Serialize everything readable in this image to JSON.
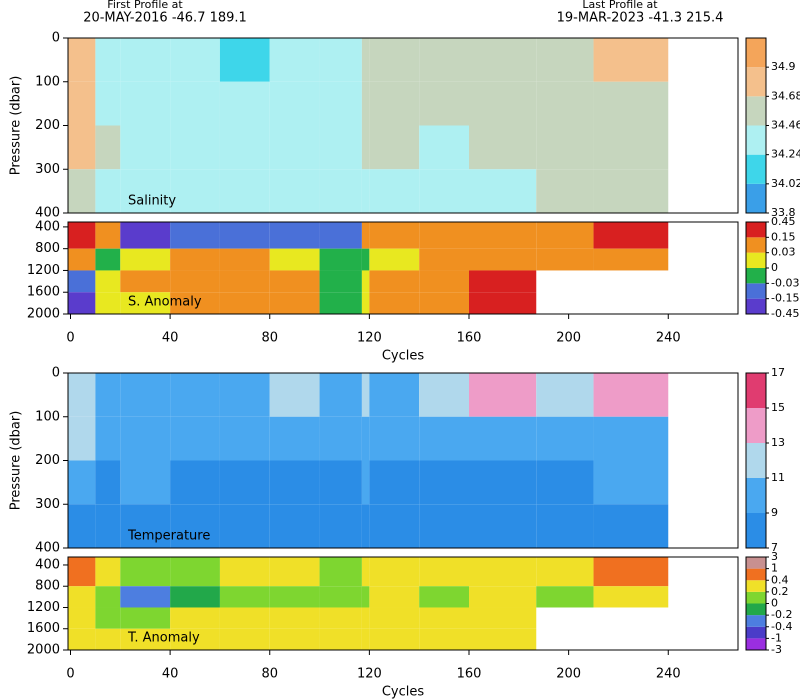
{
  "header": {
    "first_label": "First Profile at",
    "first_info": "20-MAY-2016   -46.7  189.1",
    "last_label": "Last Profile at",
    "last_info": "19-MAR-2023   -41.3  215.4"
  },
  "chart_data": [
    {
      "type": "heatmap",
      "label": "Salinity",
      "ylabel": "Pressure (dbar)",
      "xlim": [
        -1,
        268
      ],
      "ylim": [
        0,
        400
      ],
      "yticks": [
        0,
        100,
        200,
        300,
        400
      ],
      "x_edges": [
        -1,
        10,
        20,
        40,
        60,
        80,
        100,
        117,
        120,
        140,
        160,
        187,
        210,
        240,
        268
      ],
      "y_edges": [
        0,
        100,
        200,
        300,
        400
      ],
      "z": [
        [
          34.8,
          34.4,
          34.3,
          34.35,
          34.2,
          34.3,
          34.3,
          34.6,
          34.55,
          34.5,
          34.5,
          34.55,
          34.8
        ],
        [
          34.75,
          34.35,
          34.4,
          34.3,
          34.3,
          34.3,
          34.35,
          34.55,
          34.55,
          34.5,
          34.5,
          34.5,
          34.5
        ],
        [
          34.7,
          34.5,
          34.35,
          34.35,
          34.35,
          34.35,
          34.35,
          34.5,
          34.5,
          34.45,
          34.5,
          34.5,
          34.5
        ],
        [
          34.6,
          34.4,
          34.35,
          34.35,
          34.35,
          34.35,
          34.4,
          34.35,
          34.4,
          34.4,
          34.45,
          34.5,
          34.5
        ]
      ],
      "colorbar": {
        "ticks": [
          33.8,
          34.02,
          34.24,
          34.46,
          34.68,
          34.9
        ],
        "colors": [
          "#3a9fe8",
          "#3ed6ea",
          "#aef0f2",
          "#c6d6be",
          "#f4c08c",
          "#f4a55a"
        ]
      }
    },
    {
      "type": "heatmap",
      "label": "S. Anomaly",
      "xlabel": "Cycles",
      "xlim": [
        -1,
        268
      ],
      "xticks": [
        0,
        40,
        80,
        120,
        160,
        200,
        240
      ],
      "ylim": [
        310,
        2000
      ],
      "yticks": [
        400,
        800,
        1200,
        1600,
        2000
      ],
      "x_edges": [
        -1,
        10,
        20,
        40,
        60,
        80,
        100,
        117,
        120,
        140,
        160,
        187,
        210,
        240,
        268
      ],
      "y_edges": [
        310,
        800,
        1200,
        1600,
        2000
      ],
      "z": [
        [
          0.2,
          0.1,
          -0.2,
          -0.1,
          -0.1,
          -0.1,
          -0.05,
          0.1,
          0.1,
          0.1,
          0.1,
          0.1,
          0.2
        ],
        [
          0.1,
          -0.02,
          0.01,
          0.05,
          0.1,
          0.02,
          -0.02,
          -0.02,
          0.01,
          0.05,
          0.1,
          0.05,
          0.1
        ],
        [
          -0.1,
          0.01,
          0.05,
          0.1,
          0.12,
          0.05,
          -0.02,
          0.01,
          0.05,
          0.1,
          0.2,
          null,
          null
        ],
        [
          -0.2,
          0.01,
          0.02,
          0.05,
          0.1,
          0.05,
          -0.02,
          0.01,
          0.05,
          0.1,
          0.2,
          null,
          null
        ]
      ],
      "colorbar": {
        "ticks": [
          -0.45,
          -0.15,
          -0.03,
          0,
          0.03,
          0.15,
          0.45
        ],
        "colors": [
          "#5a3ccc",
          "#4a70d8",
          "#22b04a",
          "#e8e820",
          "#f09020",
          "#d82020"
        ]
      }
    },
    {
      "type": "heatmap",
      "label": "Temperature",
      "ylabel": "Pressure (dbar)",
      "xlim": [
        -1,
        268
      ],
      "ylim": [
        0,
        400
      ],
      "yticks": [
        0,
        100,
        200,
        300,
        400
      ],
      "x_edges": [
        -1,
        10,
        20,
        40,
        60,
        80,
        100,
        117,
        120,
        140,
        160,
        187,
        210,
        240,
        268
      ],
      "y_edges": [
        0,
        100,
        200,
        300,
        400
      ],
      "z": [
        [
          12,
          9.5,
          10,
          9.5,
          10,
          11,
          10,
          12,
          10,
          11,
          13,
          12,
          14
        ],
        [
          11,
          9,
          9,
          9,
          9,
          9.5,
          9,
          10,
          9.5,
          9.5,
          9.5,
          9.5,
          10
        ],
        [
          9.5,
          8.5,
          9,
          8,
          8,
          8.5,
          8.5,
          9,
          8.5,
          8.5,
          8.5,
          8.5,
          9
        ],
        [
          8.5,
          8,
          8,
          8,
          7.8,
          8,
          8,
          8,
          8,
          8,
          8,
          8,
          8
        ]
      ],
      "colorbar": {
        "ticks": [
          7,
          9,
          11,
          13,
          15,
          17
        ],
        "colors": [
          "#2b8de6",
          "#4aa8f0",
          "#b0d8ec",
          "#ee9cc8",
          "#e03c70"
        ]
      }
    },
    {
      "type": "heatmap",
      "label": "T. Anomaly",
      "xlabel": "Cycles",
      "xlim": [
        -1,
        268
      ],
      "xticks": [
        0,
        40,
        80,
        120,
        160,
        200,
        240
      ],
      "ylim": [
        250,
        2000
      ],
      "yticks": [
        400,
        800,
        1200,
        1600,
        2000
      ],
      "x_edges": [
        -1,
        10,
        20,
        40,
        60,
        80,
        100,
        117,
        120,
        140,
        160,
        187,
        210,
        240,
        268
      ],
      "y_edges": [
        250,
        800,
        1200,
        1600,
        2000
      ],
      "z": [
        [
          0.5,
          0.3,
          0.1,
          0.1,
          0.3,
          0.2,
          0.1,
          0.3,
          0.3,
          0.3,
          0.2,
          0.2,
          0.4
        ],
        [
          0.3,
          0.1,
          -0.3,
          -0.1,
          0.1,
          0.1,
          0.1,
          0.1,
          0.3,
          0.1,
          0.2,
          0.1,
          0.2
        ],
        [
          0.3,
          0.1,
          0.1,
          0.3,
          0.3,
          0.3,
          0.3,
          0.2,
          0.3,
          0.3,
          0.3,
          null,
          null
        ],
        [
          0.3,
          0.2,
          0.3,
          0.3,
          0.3,
          0.3,
          0.3,
          0.3,
          0.3,
          0.3,
          0.3,
          null,
          null
        ]
      ],
      "colorbar": {
        "ticks": [
          -3,
          -1,
          -0.4,
          -0.2,
          0,
          0.2,
          0.4,
          1,
          3
        ],
        "colors": [
          "#9a2ee0",
          "#4a3cc8",
          "#4d7ee0",
          "#22a84a",
          "#7ed630",
          "#f0e028",
          "#f07020",
          "#c89090"
        ]
      }
    }
  ]
}
